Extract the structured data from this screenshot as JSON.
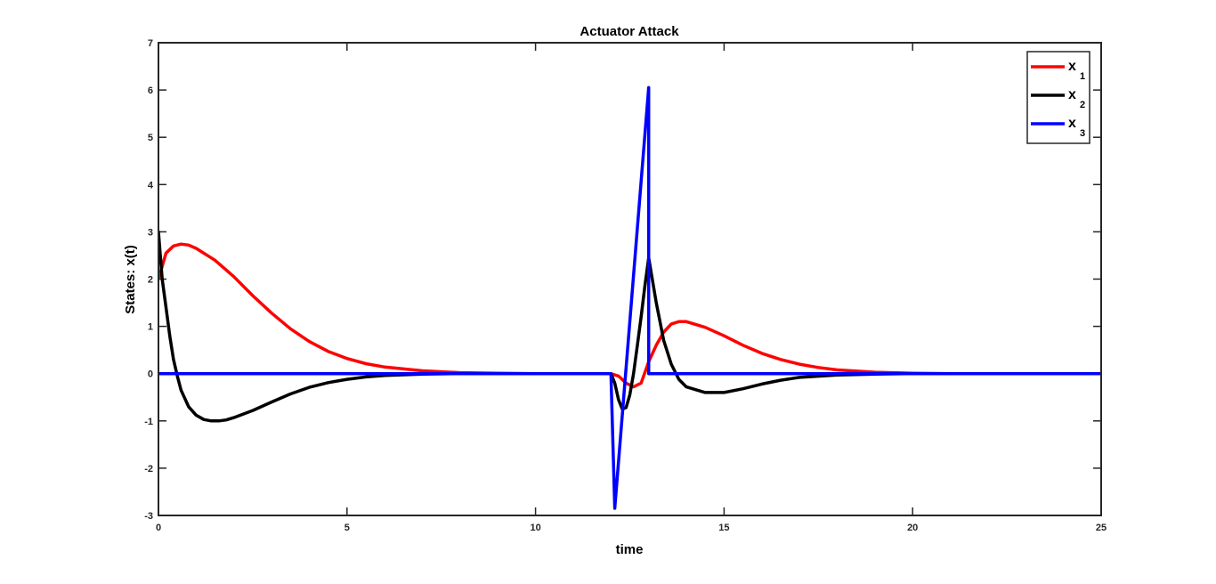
{
  "chart_data": {
    "type": "line",
    "title": "Actuator Attack",
    "xlabel": "time",
    "ylabel": "States: x(t)",
    "xlim": [
      0,
      25
    ],
    "ylim": [
      -3,
      7
    ],
    "xticks": [
      0,
      5,
      10,
      15,
      20,
      25
    ],
    "yticks": [
      -3,
      -2,
      -1,
      0,
      1,
      2,
      3,
      4,
      5,
      6,
      7
    ],
    "grid": false,
    "legend_position": "top-right",
    "series": [
      {
        "name": "x",
        "subscript": "1",
        "color": "#ff0000",
        "x": [
          0,
          0.2,
          0.4,
          0.6,
          0.8,
          1.0,
          1.5,
          2.0,
          2.5,
          3.0,
          3.5,
          4.0,
          4.5,
          5.0,
          5.5,
          6.0,
          7.0,
          8.0,
          9.0,
          10.0,
          11.0,
          12.0,
          12.2,
          12.4,
          12.6,
          12.8,
          13.0,
          13.2,
          13.4,
          13.6,
          13.8,
          14.0,
          14.5,
          15.0,
          15.5,
          16.0,
          16.5,
          17.0,
          17.5,
          18.0,
          19.0,
          20.0,
          21.0,
          22.0,
          25.0
        ],
        "y": [
          2.0,
          2.55,
          2.7,
          2.74,
          2.72,
          2.65,
          2.4,
          2.05,
          1.65,
          1.28,
          0.95,
          0.68,
          0.47,
          0.32,
          0.21,
          0.14,
          0.06,
          0.02,
          0.01,
          0.0,
          0.0,
          0.0,
          -0.05,
          -0.2,
          -0.28,
          -0.2,
          0.25,
          0.6,
          0.88,
          1.05,
          1.1,
          1.1,
          0.98,
          0.8,
          0.6,
          0.43,
          0.3,
          0.2,
          0.13,
          0.08,
          0.03,
          0.01,
          0.0,
          0.0,
          0.0
        ]
      },
      {
        "name": "x",
        "subscript": "2",
        "color": "#000000",
        "x": [
          0,
          0.1,
          0.2,
          0.3,
          0.4,
          0.5,
          0.6,
          0.8,
          1.0,
          1.2,
          1.4,
          1.6,
          1.8,
          2.0,
          2.5,
          3.0,
          3.5,
          4.0,
          4.5,
          5.0,
          5.5,
          6.0,
          7.0,
          8.0,
          9.0,
          10.0,
          11.0,
          12.0,
          12.1,
          12.2,
          12.3,
          12.4,
          12.5,
          12.6,
          12.7,
          12.8,
          12.9,
          13.0,
          13.2,
          13.4,
          13.6,
          13.8,
          14.0,
          14.5,
          15.0,
          15.5,
          16.0,
          16.5,
          17.0,
          18.0,
          19.0,
          20.0,
          21.0,
          22.0,
          25.0
        ],
        "y": [
          3.0,
          2.0,
          1.4,
          0.8,
          0.3,
          -0.05,
          -0.35,
          -0.7,
          -0.88,
          -0.97,
          -1.0,
          -1.0,
          -0.98,
          -0.93,
          -0.78,
          -0.6,
          -0.43,
          -0.29,
          -0.19,
          -0.12,
          -0.07,
          -0.04,
          -0.01,
          0.0,
          0.0,
          0.0,
          0.0,
          0.0,
          -0.2,
          -0.55,
          -0.75,
          -0.72,
          -0.45,
          0.0,
          0.6,
          1.2,
          1.85,
          2.45,
          1.5,
          0.7,
          0.2,
          -0.12,
          -0.28,
          -0.4,
          -0.4,
          -0.32,
          -0.22,
          -0.14,
          -0.08,
          -0.03,
          -0.01,
          0.0,
          0.0,
          0.0,
          0.0
        ]
      },
      {
        "name": "x",
        "subscript": "3",
        "color": "#0000ff",
        "x": [
          0,
          12.0,
          12.1,
          13.0,
          13.0,
          25.0
        ],
        "y": [
          0.0,
          0.0,
          -2.85,
          6.05,
          0.0,
          0.0
        ]
      }
    ]
  }
}
